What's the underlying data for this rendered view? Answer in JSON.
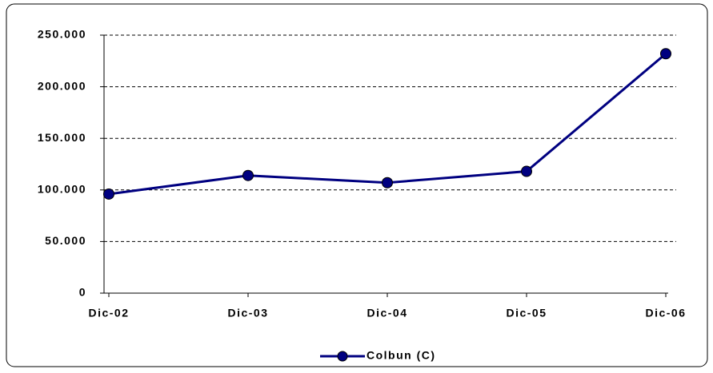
{
  "chart_data": {
    "type": "line",
    "categories": [
      "Dic-02",
      "Dic-03",
      "Dic-04",
      "Dic-05",
      "Dic-06"
    ],
    "series": [
      {
        "name": "Colbun (C)",
        "color": "#000080",
        "values": [
          96000,
          114000,
          107000,
          118000,
          232000
        ]
      }
    ],
    "ylim": [
      0,
      250000
    ],
    "yticks": [
      0,
      {
        "value": 50000,
        "label": "50.000"
      },
      {
        "value": 100000,
        "label": "100.000"
      },
      {
        "value": 150000,
        "label": "150.000"
      },
      {
        "value": 200000,
        "label": "200.000"
      },
      {
        "value": 250000,
        "label": "250.000"
      }
    ],
    "grid": true,
    "legend": "bottom"
  }
}
